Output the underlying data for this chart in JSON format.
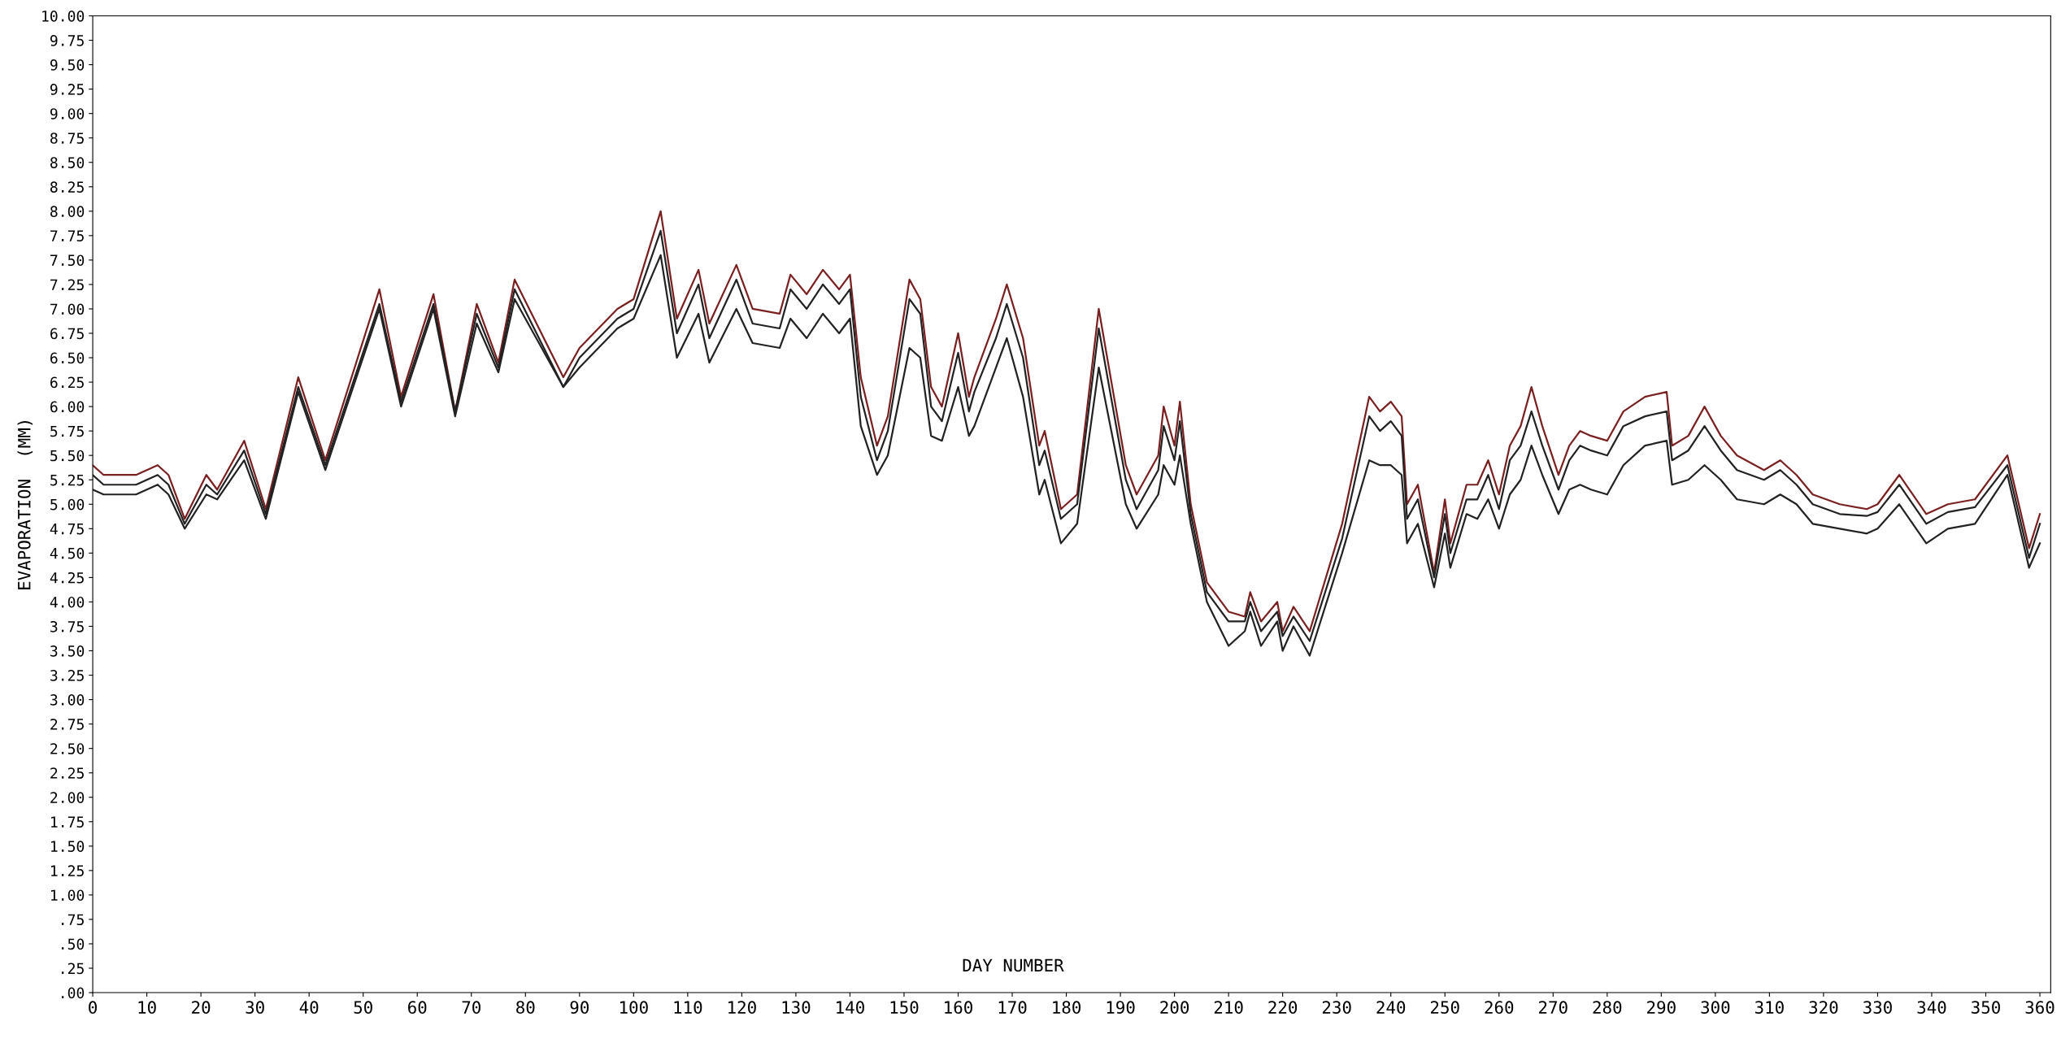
{
  "chart_data": {
    "type": "line",
    "xlabel": "DAY NUMBER",
    "ylabel": "EVAPORATION  (MM)",
    "x": [
      0,
      2,
      8,
      12,
      14,
      17,
      21,
      23,
      28,
      32,
      38,
      43,
      53,
      57,
      63,
      67,
      71,
      75,
      78,
      87,
      90,
      97,
      100,
      105,
      108,
      112,
      114,
      119,
      122,
      127,
      129,
      132,
      135,
      138,
      140,
      142,
      145,
      147,
      151,
      153,
      155,
      157,
      160,
      162,
      163,
      167,
      169,
      172,
      175,
      176,
      179,
      182,
      186,
      191,
      193,
      197,
      198,
      200,
      201,
      203,
      206,
      210,
      213,
      214,
      216,
      219,
      220,
      222,
      225,
      231,
      236,
      238,
      240,
      242,
      243,
      245,
      248,
      250,
      251,
      254,
      256,
      258,
      260,
      262,
      264,
      266,
      268,
      271,
      273,
      275,
      277,
      280,
      283,
      287,
      291,
      292,
      295,
      298,
      301,
      304,
      309,
      312,
      315,
      318,
      323,
      328,
      330,
      334,
      339,
      343,
      348,
      354,
      358,
      360
    ],
    "series": [
      {
        "color": "#7a2020",
        "values": [
          5.4,
          5.3,
          5.3,
          5.4,
          5.3,
          4.85,
          5.3,
          5.15,
          5.65,
          4.95,
          6.3,
          5.45,
          7.2,
          6.1,
          7.15,
          5.95,
          7.05,
          6.45,
          7.3,
          6.3,
          6.6,
          7.0,
          7.1,
          8.0,
          6.9,
          7.4,
          6.85,
          7.45,
          7.0,
          6.95,
          7.35,
          7.15,
          7.4,
          7.2,
          7.35,
          6.3,
          5.6,
          5.9,
          7.3,
          7.1,
          6.2,
          6.0,
          6.75,
          6.1,
          6.3,
          6.9,
          7.25,
          6.7,
          5.6,
          5.75,
          4.95,
          5.1,
          7.0,
          5.4,
          5.1,
          5.5,
          6.0,
          5.6,
          6.05,
          5.0,
          4.2,
          3.9,
          3.85,
          4.1,
          3.8,
          4.0,
          3.7,
          3.95,
          3.7,
          4.8,
          6.1,
          5.95,
          6.05,
          5.9,
          5.0,
          5.2,
          4.3,
          5.05,
          4.6,
          5.2,
          5.2,
          5.45,
          5.1,
          5.6,
          5.8,
          6.2,
          5.8,
          5.3,
          5.6,
          5.75,
          5.7,
          5.65,
          5.95,
          6.1,
          6.15,
          5.6,
          5.7,
          6.0,
          5.7,
          5.5,
          5.35,
          5.45,
          5.3,
          5.1,
          5.0,
          4.95,
          5.0,
          5.3,
          4.9,
          5.0,
          5.05,
          5.5,
          4.55,
          4.9
        ]
      },
      {
        "color": "#222222",
        "values": [
          5.3,
          5.2,
          5.2,
          5.3,
          5.2,
          4.8,
          5.2,
          5.1,
          5.55,
          4.9,
          6.2,
          5.4,
          7.05,
          6.05,
          7.05,
          5.95,
          6.95,
          6.4,
          7.2,
          6.2,
          6.5,
          6.9,
          7.0,
          7.8,
          6.75,
          7.25,
          6.7,
          7.3,
          6.85,
          6.8,
          7.2,
          7.0,
          7.25,
          7.05,
          7.2,
          6.1,
          5.45,
          5.75,
          7.1,
          6.95,
          6.0,
          5.85,
          6.55,
          5.95,
          6.15,
          6.7,
          7.05,
          6.5,
          5.4,
          5.55,
          4.85,
          5.0,
          6.8,
          5.25,
          4.95,
          5.35,
          5.8,
          5.45,
          5.85,
          4.9,
          4.1,
          3.8,
          3.8,
          4.0,
          3.7,
          3.9,
          3.65,
          3.85,
          3.6,
          4.65,
          5.9,
          5.75,
          5.85,
          5.7,
          4.85,
          5.05,
          4.25,
          4.9,
          4.5,
          5.05,
          5.05,
          5.3,
          4.95,
          5.45,
          5.6,
          5.95,
          5.6,
          5.15,
          5.45,
          5.6,
          5.55,
          5.5,
          5.8,
          5.9,
          5.95,
          5.45,
          5.55,
          5.8,
          5.55,
          5.35,
          5.25,
          5.35,
          5.2,
          5.0,
          4.9,
          4.88,
          4.92,
          5.2,
          4.8,
          4.92,
          4.97,
          5.4,
          4.45,
          4.8
        ]
      },
      {
        "color": "#222222",
        "values": [
          5.15,
          5.1,
          5.1,
          5.2,
          5.1,
          4.75,
          5.1,
          5.05,
          5.45,
          4.85,
          6.15,
          5.35,
          7.0,
          6.0,
          7.0,
          5.9,
          6.85,
          6.35,
          7.1,
          6.2,
          6.4,
          6.8,
          6.9,
          7.55,
          6.5,
          6.95,
          6.45,
          7.0,
          6.65,
          6.6,
          6.9,
          6.7,
          6.95,
          6.75,
          6.9,
          5.8,
          5.3,
          5.5,
          6.6,
          6.5,
          5.7,
          5.65,
          6.2,
          5.7,
          5.8,
          6.4,
          6.7,
          6.1,
          5.1,
          5.25,
          4.6,
          4.8,
          6.4,
          5.0,
          4.75,
          5.1,
          5.4,
          5.2,
          5.5,
          4.8,
          4.0,
          3.55,
          3.7,
          3.9,
          3.55,
          3.8,
          3.5,
          3.75,
          3.45,
          4.5,
          5.45,
          5.4,
          5.4,
          5.3,
          4.6,
          4.8,
          4.15,
          4.7,
          4.35,
          4.9,
          4.85,
          5.05,
          4.75,
          5.1,
          5.25,
          5.6,
          5.3,
          4.9,
          5.15,
          5.2,
          5.15,
          5.1,
          5.4,
          5.6,
          5.65,
          5.2,
          5.25,
          5.4,
          5.25,
          5.05,
          5.0,
          5.1,
          5.0,
          4.8,
          4.75,
          4.7,
          4.75,
          5.0,
          4.6,
          4.75,
          4.8,
          5.3,
          4.35,
          4.6
        ]
      }
    ],
    "xlim": [
      0,
      362
    ],
    "ylim": [
      0,
      10
    ],
    "xticks": [
      0,
      10,
      20,
      30,
      40,
      50,
      60,
      70,
      80,
      90,
      100,
      110,
      120,
      130,
      140,
      150,
      160,
      170,
      180,
      190,
      200,
      210,
      220,
      230,
      240,
      250,
      260,
      270,
      280,
      290,
      300,
      310,
      320,
      330,
      340,
      350,
      360
    ],
    "yticks": [
      {
        "value": 0,
        "label": ".00"
      },
      {
        "value": 0.25,
        "label": ".25"
      },
      {
        "value": 0.5,
        "label": ".50"
      },
      {
        "value": 0.75,
        "label": ".75"
      },
      {
        "value": 1,
        "label": "1.00"
      },
      {
        "value": 1.25,
        "label": "1.25"
      },
      {
        "value": 1.5,
        "label": "1.50"
      },
      {
        "value": 1.75,
        "label": "1.75"
      },
      {
        "value": 2,
        "label": "2.00"
      },
      {
        "value": 2.25,
        "label": "2.25"
      },
      {
        "value": 2.5,
        "label": "2.50"
      },
      {
        "value": 2.75,
        "label": "2.75"
      },
      {
        "value": 3,
        "label": "3.00"
      },
      {
        "value": 3.25,
        "label": "3.25"
      },
      {
        "value": 3.5,
        "label": "3.50"
      },
      {
        "value": 3.75,
        "label": "3.75"
      },
      {
        "value": 4,
        "label": "4.00"
      },
      {
        "value": 4.25,
        "label": "4.25"
      },
      {
        "value": 4.5,
        "label": "4.50"
      },
      {
        "value": 4.75,
        "label": "4.75"
      },
      {
        "value": 5,
        "label": "5.00"
      },
      {
        "value": 5.25,
        "label": "5.25"
      },
      {
        "value": 5.5,
        "label": "5.50"
      },
      {
        "value": 5.75,
        "label": "5.75"
      },
      {
        "value": 6,
        "label": "6.00"
      },
      {
        "value": 6.25,
        "label": "6.25"
      },
      {
        "value": 6.5,
        "label": "6.50"
      },
      {
        "value": 6.75,
        "label": "6.75"
      },
      {
        "value": 7,
        "label": "7.00"
      },
      {
        "value": 7.25,
        "label": "7.25"
      },
      {
        "value": 7.5,
        "label": "7.50"
      },
      {
        "value": 7.75,
        "label": "7.75"
      },
      {
        "value": 8,
        "label": "8.00"
      },
      {
        "value": 8.25,
        "label": "8.25"
      },
      {
        "value": 8.5,
        "label": "8.50"
      },
      {
        "value": 8.75,
        "label": "8.75"
      },
      {
        "value": 9,
        "label": "9.00"
      },
      {
        "value": 9.25,
        "label": "9.25"
      },
      {
        "value": 9.5,
        "label": "9.50"
      },
      {
        "value": 9.75,
        "label": "9.75"
      },
      {
        "value": 10,
        "label": "10.00"
      }
    ],
    "marker": "none",
    "line_style": "solid"
  }
}
